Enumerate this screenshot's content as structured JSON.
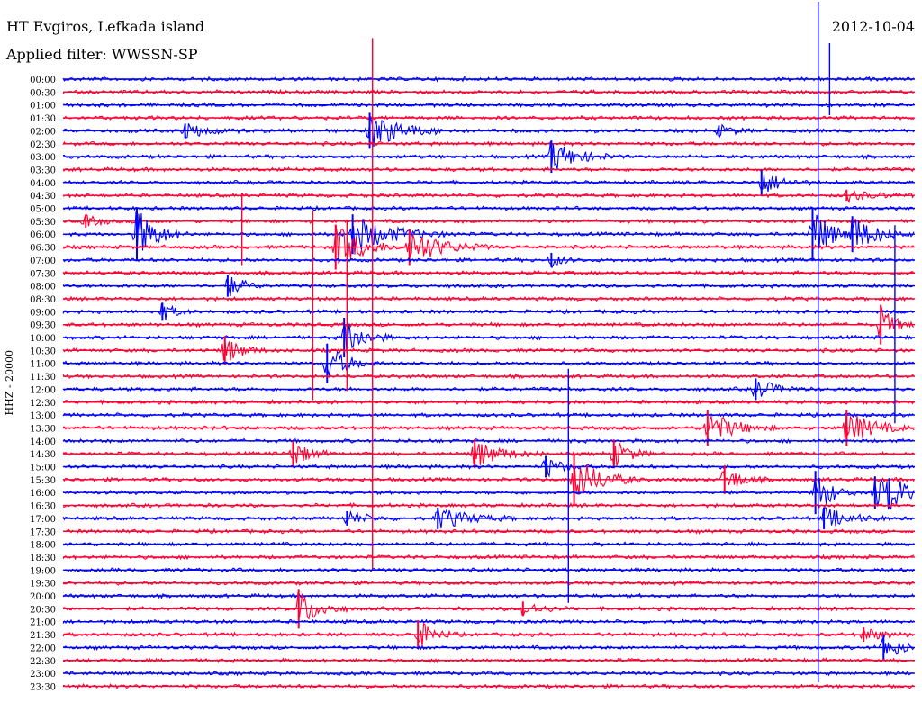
{
  "header": {
    "station": "HT Evgiros, Lefkada island",
    "filter": "Applied filter: WWSSN-SP",
    "date": "2012-10-04"
  },
  "colors": {
    "trace_a": "#0000ff",
    "trace_b": "#ff0033",
    "text": "#000000",
    "background": "#ffffff"
  },
  "chart_data": {
    "type": "line",
    "title": "",
    "ylabel": "HHZ - 20000",
    "xlabel": "",
    "grid": false,
    "legend": "none",
    "rows": [
      "00:00",
      "00:30",
      "01:00",
      "01:30",
      "02:00",
      "02:30",
      "03:00",
      "03:30",
      "04:00",
      "04:30",
      "05:00",
      "05:30",
      "06:00",
      "06:30",
      "07:00",
      "07:30",
      "08:00",
      "08:30",
      "09:00",
      "09:30",
      "10:00",
      "10:30",
      "11:00",
      "11:30",
      "12:00",
      "12:30",
      "13:00",
      "13:30",
      "14:00",
      "14:30",
      "15:00",
      "15:30",
      "16:00",
      "16:30",
      "17:00",
      "17:30",
      "18:00",
      "18:30",
      "19:00",
      "19:30",
      "20:00",
      "20:30",
      "21:00",
      "21:30",
      "22:00",
      "22:30",
      "23:00",
      "23:30"
    ],
    "row_minutes": 30,
    "events": [
      {
        "row": "02:00",
        "minute": 4.3,
        "amp": 8,
        "dur": 0.8
      },
      {
        "row": "02:00",
        "minute": 10.8,
        "amp": 20,
        "dur": 1.0
      },
      {
        "row": "02:00",
        "minute": 23.1,
        "amp": 6,
        "dur": 0.5
      },
      {
        "row": "03:00",
        "minute": 17.2,
        "amp": 18,
        "dur": 0.8
      },
      {
        "row": "04:00",
        "minute": 24.6,
        "amp": 14,
        "dur": 0.6
      },
      {
        "row": "04:30",
        "minute": 27.6,
        "amp": 6,
        "dur": 0.8
      },
      {
        "row": "05:30",
        "minute": 0.8,
        "amp": 7,
        "dur": 0.4
      },
      {
        "row": "06:00",
        "minute": 2.6,
        "amp": 30,
        "dur": 0.6
      },
      {
        "row": "06:00",
        "minute": 10.2,
        "amp": 22,
        "dur": 1.2
      },
      {
        "row": "06:00",
        "minute": 26.4,
        "amp": 30,
        "dur": 0.6
      },
      {
        "row": "06:00",
        "minute": 27.8,
        "amp": 20,
        "dur": 0.8
      },
      {
        "row": "06:30",
        "minute": 9.6,
        "amp": 25,
        "dur": 0.8
      },
      {
        "row": "06:30",
        "minute": 12.2,
        "amp": 20,
        "dur": 1.0
      },
      {
        "row": "07:00",
        "minute": 17.2,
        "amp": 8,
        "dur": 0.4
      },
      {
        "row": "08:00",
        "minute": 5.8,
        "amp": 12,
        "dur": 0.5
      },
      {
        "row": "09:00",
        "minute": 3.5,
        "amp": 10,
        "dur": 0.4
      },
      {
        "row": "09:30",
        "minute": 28.8,
        "amp": 22,
        "dur": 0.4
      },
      {
        "row": "10:00",
        "minute": 9.9,
        "amp": 22,
        "dur": 0.6
      },
      {
        "row": "10:30",
        "minute": 5.7,
        "amp": 16,
        "dur": 0.5
      },
      {
        "row": "11:00",
        "minute": 9.3,
        "amp": 22,
        "dur": 0.6
      },
      {
        "row": "12:00",
        "minute": 24.4,
        "amp": 12,
        "dur": 0.6
      },
      {
        "row": "13:30",
        "minute": 22.7,
        "amp": 20,
        "dur": 0.8
      },
      {
        "row": "13:30",
        "minute": 27.6,
        "amp": 20,
        "dur": 0.8
      },
      {
        "row": "14:30",
        "minute": 8.1,
        "amp": 14,
        "dur": 0.5
      },
      {
        "row": "14:30",
        "minute": 14.5,
        "amp": 16,
        "dur": 0.8
      },
      {
        "row": "14:30",
        "minute": 19.4,
        "amp": 16,
        "dur": 0.5
      },
      {
        "row": "15:00",
        "minute": 17.0,
        "amp": 12,
        "dur": 0.5
      },
      {
        "row": "15:30",
        "minute": 18.0,
        "amp": 28,
        "dur": 0.8
      },
      {
        "row": "15:30",
        "minute": 23.3,
        "amp": 16,
        "dur": 0.5
      },
      {
        "row": "16:00",
        "minute": 26.5,
        "amp": 24,
        "dur": 0.5
      },
      {
        "row": "16:00",
        "minute": 28.6,
        "amp": 18,
        "dur": 0.6
      },
      {
        "row": "16:00",
        "minute": 29.1,
        "amp": 16,
        "dur": 0.6
      },
      {
        "row": "17:00",
        "minute": 10.0,
        "amp": 8,
        "dur": 0.6
      },
      {
        "row": "17:00",
        "minute": 13.2,
        "amp": 12,
        "dur": 1.0
      },
      {
        "row": "17:00",
        "minute": 26.8,
        "amp": 12,
        "dur": 0.8
      },
      {
        "row": "20:30",
        "minute": 8.3,
        "amp": 22,
        "dur": 0.6
      },
      {
        "row": "20:30",
        "minute": 16.2,
        "amp": 8,
        "dur": 0.6
      },
      {
        "row": "21:30",
        "minute": 12.5,
        "amp": 16,
        "dur": 0.5
      },
      {
        "row": "21:30",
        "minute": 28.2,
        "amp": 8,
        "dur": 0.6
      },
      {
        "row": "22:00",
        "minute": 28.9,
        "amp": 14,
        "dur": 0.6
      }
    ],
    "spikes": [
      {
        "row": "00:30",
        "minute": 10.9,
        "up": 60,
        "down": 530
      },
      {
        "row": "00:00",
        "minute": 26.6,
        "up": 90,
        "down": 670
      },
      {
        "row": "00:00",
        "minute": 27.0,
        "up": 40,
        "down": 40
      },
      {
        "row": "06:30",
        "minute": 6.3,
        "up": 60,
        "down": 20
      },
      {
        "row": "06:30",
        "minute": 8.8,
        "up": 40,
        "down": 170
      },
      {
        "row": "06:30",
        "minute": 10.0,
        "up": 30,
        "down": 160
      },
      {
        "row": "14:00",
        "minute": 17.8,
        "up": 80,
        "down": 180
      },
      {
        "row": "06:00",
        "minute": 29.3,
        "up": 10,
        "down": 210
      }
    ]
  }
}
